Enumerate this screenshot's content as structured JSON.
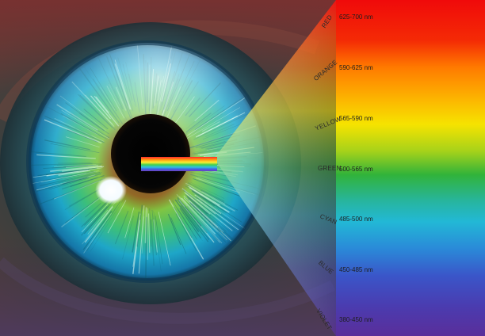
{
  "image": {
    "subject": "Close-up of a human eye with a light beam entering the pupil and dispersing into the visible spectrum",
    "spectrum_colors": {
      "red": "#f00a0a",
      "orange": "#ff7a00",
      "yellow": "#f6e300",
      "green": "#31b33a",
      "cyan": "#22b8d6",
      "blue": "#3a56c9",
      "violet": "#5a2e9a"
    }
  },
  "spectrum": {
    "bands": [
      {
        "label": "RED",
        "wavelength": "625-700 nm"
      },
      {
        "label": "ORANGE",
        "wavelength": "590-625 nm"
      },
      {
        "label": "YELLOW",
        "wavelength": "565-590 nm"
      },
      {
        "label": "GREEN",
        "wavelength": "500-565 nm"
      },
      {
        "label": "CYAN",
        "wavelength": "485-500 nm"
      },
      {
        "label": "BLUE",
        "wavelength": "450-485 nm"
      },
      {
        "label": "VIOLET",
        "wavelength": "380-450 nm"
      }
    ]
  }
}
